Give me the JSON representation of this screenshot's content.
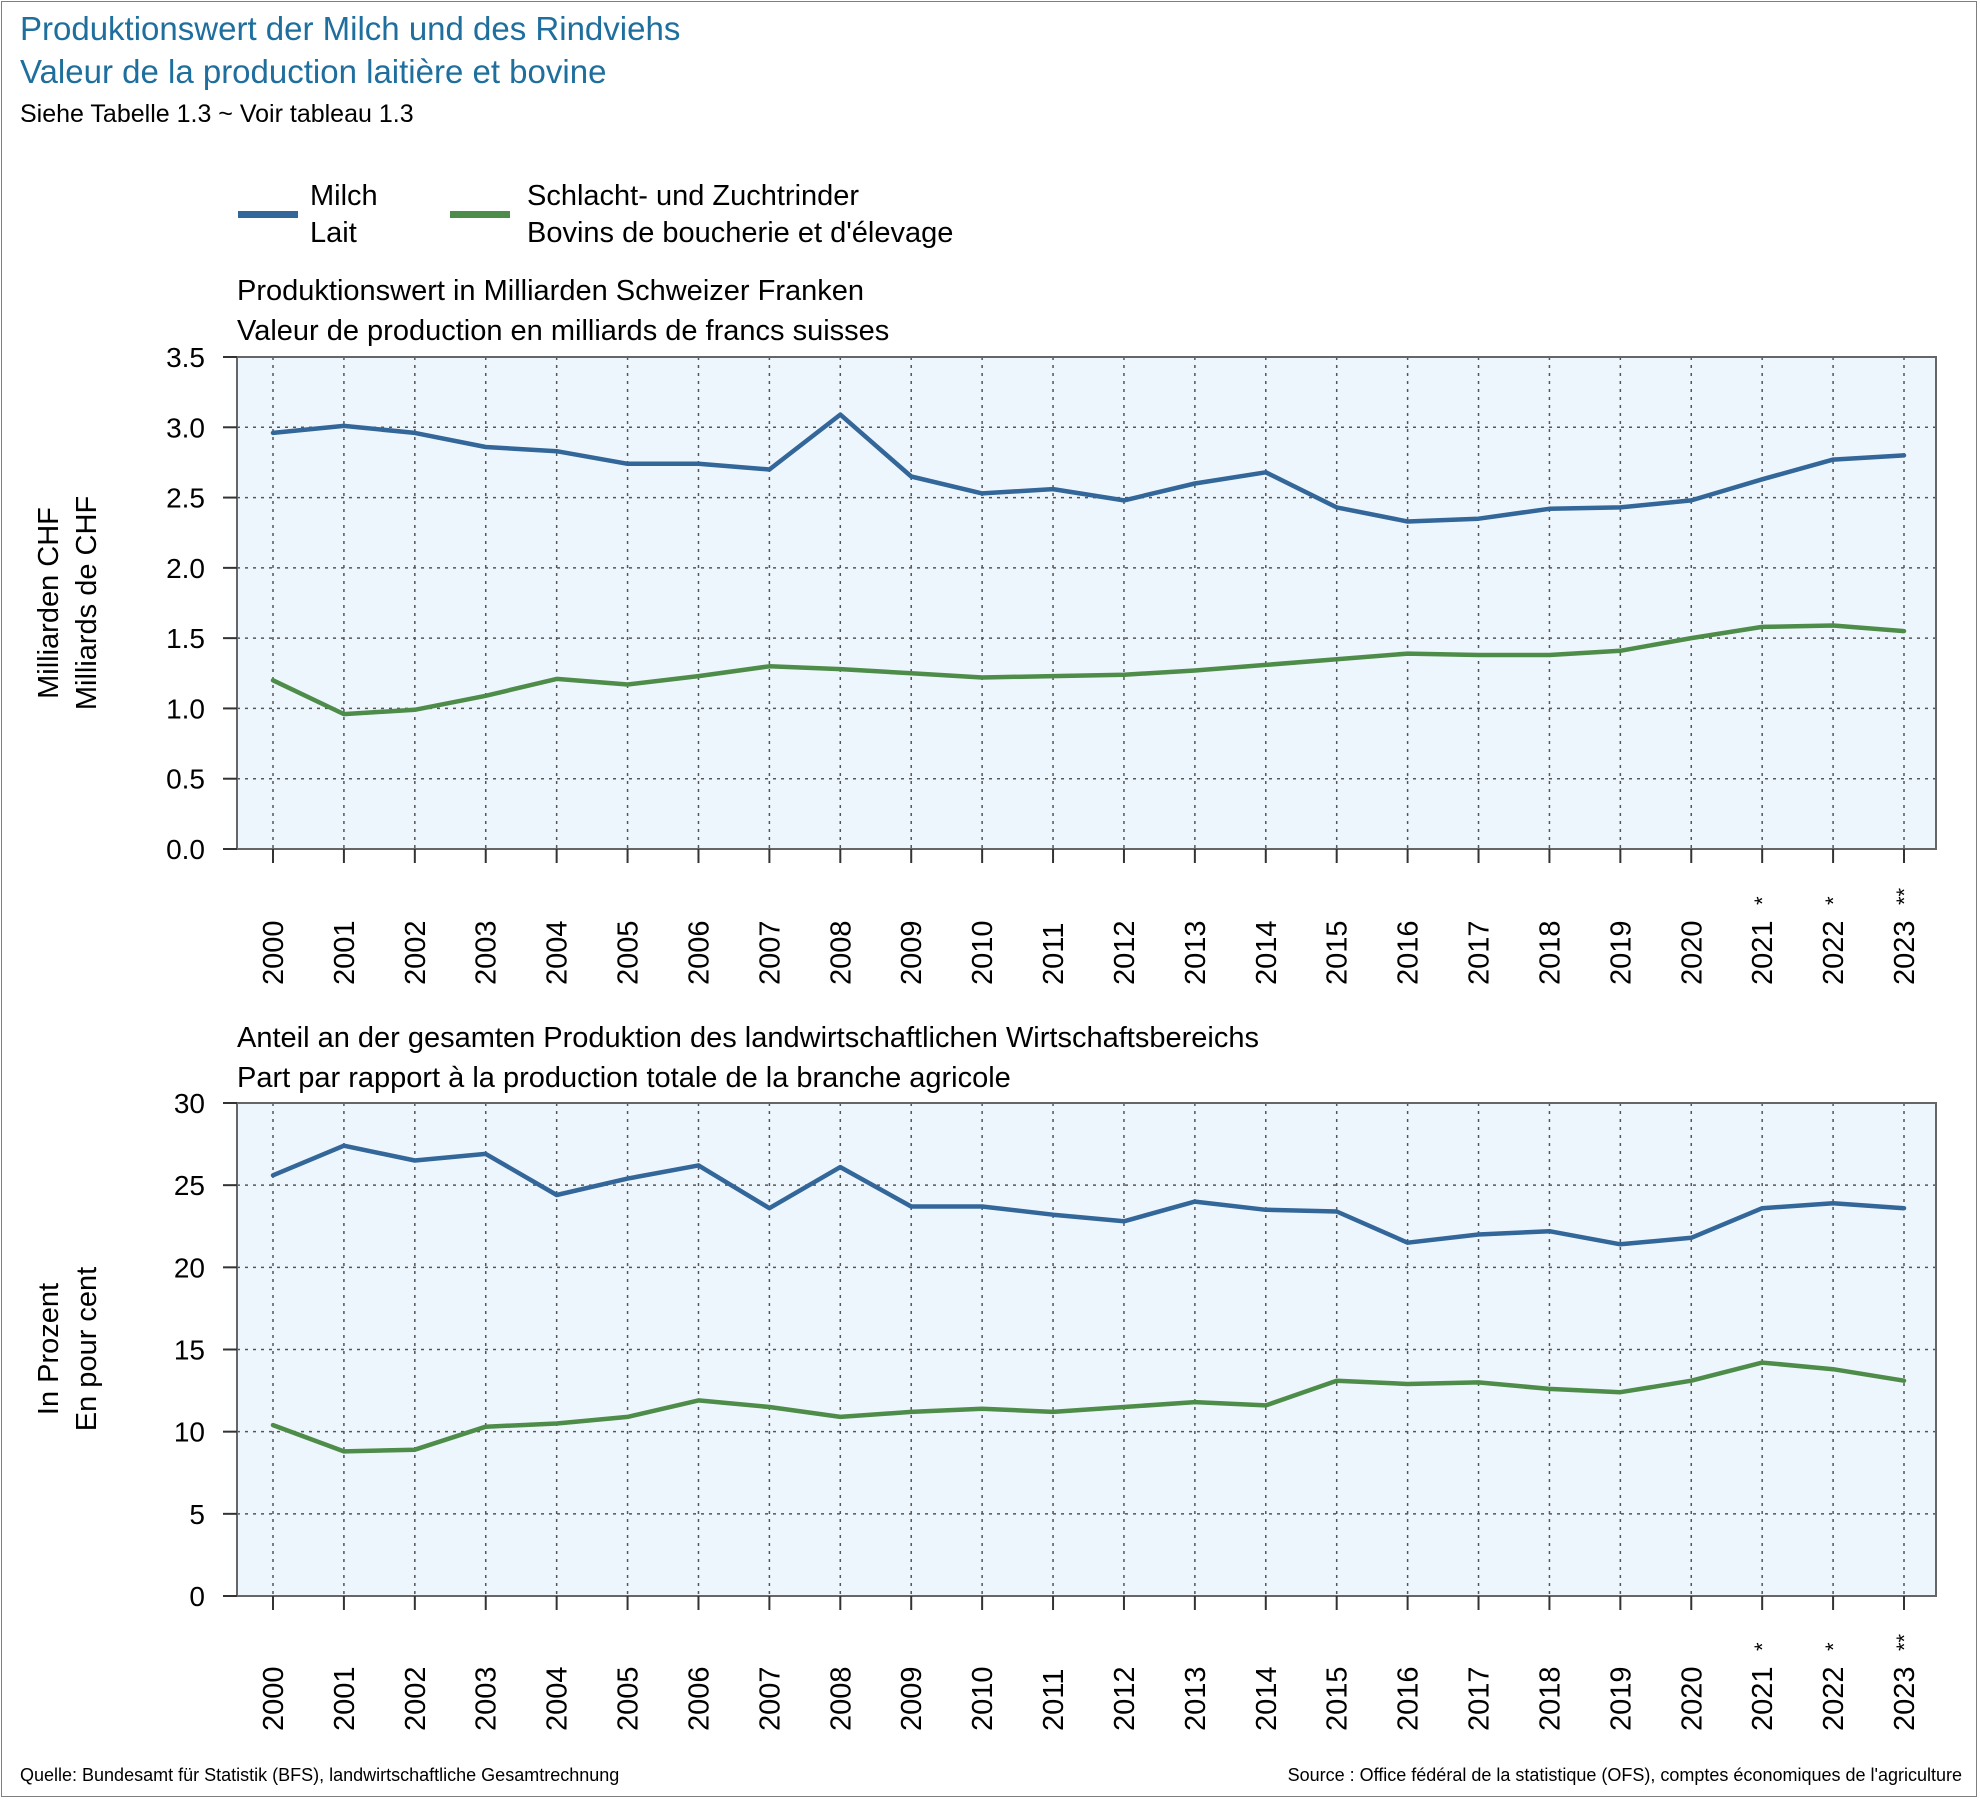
{
  "header": {
    "title_de": "Produktionswert der Milch und des Rindviehs",
    "title_fr": "Valeur de la production laitière et bovine",
    "note": "Siehe Tabelle 1.3   ~   Voir tableau 1.3"
  },
  "legend": [
    {
      "line1": "Milch",
      "line2": "Lait",
      "color": "#336699"
    },
    {
      "line1": "Schlacht- und Zuchtrinder",
      "line2": "Bovins de boucherie et d'élevage",
      "color": "#4e8c4a"
    }
  ],
  "footer": {
    "source_de": "Quelle: Bundesamt für Statistik (BFS), landwirtschaftliche Gesamtrechnung",
    "source_fr": "Source : Office fédéral de la statistique (OFS), comptes économiques de l'agriculture"
  },
  "chart_data": [
    {
      "type": "line",
      "title": "Produktionswert in Milliarden Schweizer Franken",
      "subtitle": "Valeur de production en milliards de francs suisses",
      "ylabel": "Milliarden CHF",
      "ylabel2": "Milliards de CHF",
      "xlabel": "",
      "categories": [
        "2000",
        "2001",
        "2002",
        "2003",
        "2004",
        "2005",
        "2006",
        "2007",
        "2008",
        "2009",
        "2010",
        "2011",
        "2012",
        "2013",
        "2014",
        "2015",
        "2016",
        "2017",
        "2018",
        "2019",
        "2020",
        "2021 *",
        "2022 *",
        "2023 **"
      ],
      "ylim": [
        0,
        3.5
      ],
      "yticks": [
        "0.0",
        "0.5",
        "1.0",
        "1.5",
        "2.0",
        "2.5",
        "3.0",
        "3.5"
      ],
      "grid": true,
      "series": [
        {
          "name": "Milch / Lait",
          "color": "#336699",
          "values": [
            2.96,
            3.01,
            2.96,
            2.86,
            2.83,
            2.74,
            2.74,
            2.7,
            3.09,
            2.65,
            2.53,
            2.56,
            2.48,
            2.6,
            2.68,
            2.43,
            2.33,
            2.35,
            2.42,
            2.43,
            2.48,
            2.63,
            2.77,
            2.8
          ]
        },
        {
          "name": "Schlacht- und Zuchtrinder / Bovins de boucherie et d'élevage",
          "color": "#4e8c4a",
          "values": [
            1.2,
            0.96,
            0.99,
            1.09,
            1.21,
            1.17,
            1.23,
            1.3,
            1.28,
            1.25,
            1.22,
            1.23,
            1.24,
            1.27,
            1.31,
            1.35,
            1.39,
            1.38,
            1.38,
            1.41,
            1.5,
            1.58,
            1.59,
            1.55
          ]
        }
      ]
    },
    {
      "type": "line",
      "title": "Anteil an der gesamten Produktion des landwirtschaftlichen Wirtschaftsbereichs",
      "subtitle": "Part par rapport à la production totale de la branche agricole",
      "ylabel": "In Prozent",
      "ylabel2": "En pour cent",
      "xlabel": "",
      "categories": [
        "2000",
        "2001",
        "2002",
        "2003",
        "2004",
        "2005",
        "2006",
        "2007",
        "2008",
        "2009",
        "2010",
        "2011",
        "2012",
        "2013",
        "2014",
        "2015",
        "2016",
        "2017",
        "2018",
        "2019",
        "2020",
        "2021 *",
        "2022 *",
        "2023 **"
      ],
      "ylim": [
        0,
        30
      ],
      "yticks": [
        "0",
        "5",
        "10",
        "15",
        "20",
        "25",
        "30"
      ],
      "grid": true,
      "series": [
        {
          "name": "Milch / Lait",
          "color": "#336699",
          "values": [
            25.6,
            27.4,
            26.5,
            26.9,
            24.4,
            25.4,
            26.2,
            23.6,
            26.1,
            23.7,
            23.7,
            23.2,
            22.8,
            24.0,
            23.5,
            23.4,
            21.5,
            22.0,
            22.2,
            21.4,
            21.8,
            23.6,
            23.9,
            23.6
          ]
        },
        {
          "name": "Schlacht- und Zuchtrinder / Bovins de boucherie et d'élevage",
          "color": "#4e8c4a",
          "values": [
            10.4,
            8.8,
            8.9,
            10.3,
            10.5,
            10.9,
            11.9,
            11.5,
            10.9,
            11.2,
            11.4,
            11.2,
            11.5,
            11.8,
            11.6,
            13.1,
            12.9,
            13.0,
            12.6,
            12.4,
            13.1,
            14.2,
            13.8,
            13.1
          ]
        }
      ]
    }
  ]
}
